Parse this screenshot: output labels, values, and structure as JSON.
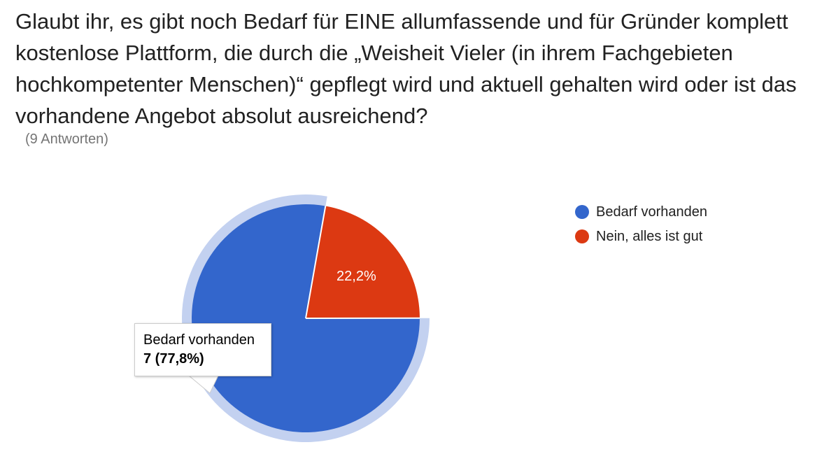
{
  "question": "Glaubt ihr, es gibt noch Bedarf für EINE allumfassende und für Gründer komplett kostenlose Plattform, die durch die „Weisheit Vieler (in ihrem Fachgebieten hochkompetenter Menschen)“ gepflegt wird und aktuell gehalten wird oder ist das vorhandene Angebot absolut ausreichend?",
  "responses": "(9 Antworten)",
  "chart_data": {
    "type": "pie",
    "total": 9,
    "legend_position": "right",
    "slices": [
      {
        "name": "Bedarf vorhanden",
        "count": 7,
        "percent": 77.8,
        "label": "",
        "color": "#3366cc",
        "highlighted": true
      },
      {
        "name": "Nein, alles ist gut",
        "count": 2,
        "percent": 22.2,
        "label": "22,2%",
        "color": "#dc3912",
        "highlighted": false
      }
    ],
    "legend": [
      {
        "label": "Bedarf vorhanden",
        "color": "#3366cc"
      },
      {
        "label": "Nein, alles ist gut",
        "color": "#dc3912"
      }
    ],
    "tooltip": {
      "title": "Bedarf vorhanden",
      "value": "7 (77,8%)"
    }
  }
}
